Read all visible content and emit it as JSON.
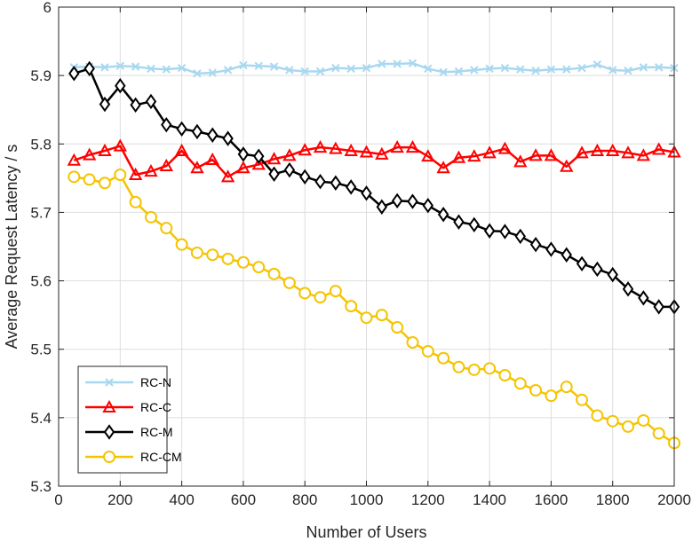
{
  "chart_data": {
    "type": "line",
    "xlabel": "Number of Users",
    "ylabel": "Average Request Latency / s",
    "xlim": [
      0,
      2000
    ],
    "ylim": [
      5.3,
      6.0
    ],
    "xticks": [
      0,
      200,
      400,
      600,
      800,
      1000,
      1200,
      1400,
      1600,
      1800,
      2000
    ],
    "yticks": [
      5.3,
      5.4,
      5.5,
      5.6,
      5.7,
      5.8,
      5.9,
      6.0
    ],
    "xtick_labels": [
      "0",
      "200",
      "400",
      "600",
      "800",
      "1000",
      "1200",
      "1400",
      "1600",
      "1800",
      "2000"
    ],
    "ytick_labels": [
      "5.3",
      "5.4",
      "5.5",
      "5.6",
      "5.7",
      "5.8",
      "5.9",
      "6"
    ],
    "grid": true,
    "legend_position": "bottom-left",
    "x": [
      50,
      100,
      150,
      200,
      250,
      300,
      350,
      400,
      450,
      500,
      550,
      600,
      650,
      700,
      750,
      800,
      850,
      900,
      950,
      1000,
      1050,
      1100,
      1150,
      1200,
      1250,
      1300,
      1350,
      1400,
      1450,
      1500,
      1550,
      1600,
      1650,
      1700,
      1750,
      1800,
      1850,
      1900,
      1950,
      2000
    ],
    "series": [
      {
        "name": "RC-N",
        "color": "#a8d8f0",
        "marker": "x",
        "values": [
          5.912,
          5.913,
          5.912,
          5.914,
          5.913,
          5.91,
          5.909,
          5.911,
          5.903,
          5.904,
          5.908,
          5.915,
          5.914,
          5.913,
          5.908,
          5.906,
          5.906,
          5.911,
          5.91,
          5.911,
          5.917,
          5.917,
          5.918,
          5.91,
          5.905,
          5.906,
          5.908,
          5.91,
          5.911,
          5.909,
          5.907,
          5.909,
          5.909,
          5.911,
          5.916,
          5.908,
          5.907,
          5.912,
          5.912,
          5.911
        ]
      },
      {
        "name": "RC-C",
        "color": "#ff0000",
        "marker": "triangle",
        "values": [
          5.776,
          5.784,
          5.79,
          5.797,
          5.755,
          5.76,
          5.768,
          5.79,
          5.765,
          5.777,
          5.752,
          5.765,
          5.77,
          5.778,
          5.783,
          5.791,
          5.795,
          5.793,
          5.79,
          5.788,
          5.785,
          5.795,
          5.795,
          5.782,
          5.765,
          5.78,
          5.782,
          5.787,
          5.793,
          5.774,
          5.783,
          5.783,
          5.767,
          5.787,
          5.79,
          5.79,
          5.787,
          5.783,
          5.792,
          5.788
        ]
      },
      {
        "name": "RC-M",
        "color": "#000000",
        "marker": "diamond",
        "values": [
          5.903,
          5.91,
          5.858,
          5.885,
          5.857,
          5.862,
          5.828,
          5.822,
          5.818,
          5.813,
          5.808,
          5.785,
          5.782,
          5.756,
          5.762,
          5.752,
          5.745,
          5.743,
          5.737,
          5.728,
          5.708,
          5.717,
          5.716,
          5.71,
          5.697,
          5.686,
          5.682,
          5.673,
          5.672,
          5.665,
          5.653,
          5.646,
          5.638,
          5.625,
          5.617,
          5.609,
          5.588,
          5.575,
          5.562,
          5.562
        ]
      },
      {
        "name": "RC-CM",
        "color": "#f5c400",
        "marker": "circle",
        "values": [
          5.752,
          5.748,
          5.743,
          5.755,
          5.715,
          5.693,
          5.677,
          5.653,
          5.641,
          5.638,
          5.632,
          5.627,
          5.62,
          5.61,
          5.597,
          5.582,
          5.576,
          5.585,
          5.563,
          5.546,
          5.55,
          5.532,
          5.51,
          5.497,
          5.487,
          5.474,
          5.47,
          5.472,
          5.462,
          5.45,
          5.44,
          5.432,
          5.445,
          5.426,
          5.403,
          5.395,
          5.387,
          5.396,
          5.377,
          5.363
        ]
      }
    ]
  }
}
